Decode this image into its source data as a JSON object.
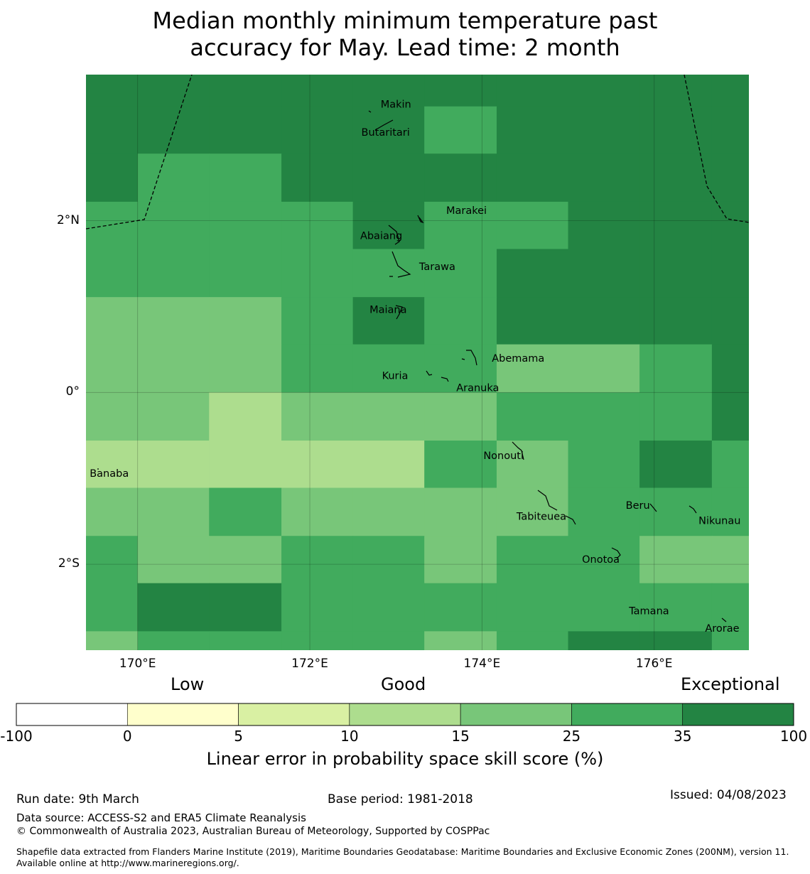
{
  "title_line1": "Median monthly minimum temperature past",
  "title_line2": "accuracy for May. Lead time: 2 month",
  "map": {
    "lon_range": [
      169.4,
      177.1
    ],
    "lat_range": [
      -3.0,
      3.7
    ],
    "lon_ticks": [
      {
        "value": 170,
        "label": "170°E"
      },
      {
        "value": 172,
        "label": "172°E"
      },
      {
        "value": 174,
        "label": "174°E"
      },
      {
        "value": 176,
        "label": "176°E"
      }
    ],
    "lat_ticks": [
      {
        "value": 2,
        "label": "2°N"
      },
      {
        "value": 0,
        "label": "0°"
      },
      {
        "value": -2,
        "label": "2°S"
      }
    ],
    "cell_lons": [
      169.4,
      170.0,
      170.83,
      171.67,
      172.5,
      173.33,
      174.17,
      175.0,
      175.83,
      176.67,
      177.1
    ],
    "cell_lats": [
      3.7,
      3.33,
      2.78,
      2.22,
      1.67,
      1.11,
      0.56,
      0.0,
      -0.56,
      -1.11,
      -1.67,
      -2.22,
      -2.78,
      -3.0
    ],
    "grid": [
      [
        6,
        6,
        6,
        6,
        6,
        6,
        6,
        6,
        6,
        6
      ],
      [
        6,
        6,
        6,
        6,
        6,
        5,
        6,
        6,
        6,
        6
      ],
      [
        6,
        5,
        5,
        6,
        6,
        6,
        6,
        6,
        6,
        6
      ],
      [
        5,
        5,
        5,
        5,
        6,
        5,
        5,
        6,
        6,
        6
      ],
      [
        5,
        5,
        5,
        5,
        5,
        5,
        6,
        6,
        6,
        6
      ],
      [
        4,
        4,
        4,
        5,
        6,
        5,
        6,
        6,
        6,
        6
      ],
      [
        4,
        4,
        4,
        5,
        5,
        5,
        4,
        4,
        5,
        6
      ],
      [
        4,
        4,
        3,
        4,
        4,
        4,
        5,
        5,
        5,
        6
      ],
      [
        3,
        3,
        3,
        3,
        3,
        5,
        4,
        5,
        6,
        5
      ],
      [
        4,
        4,
        5,
        4,
        4,
        4,
        4,
        5,
        5,
        5
      ],
      [
        5,
        4,
        4,
        5,
        5,
        4,
        5,
        5,
        4,
        4
      ],
      [
        5,
        6,
        6,
        5,
        5,
        5,
        5,
        5,
        5,
        5
      ],
      [
        4,
        5,
        5,
        5,
        5,
        4,
        5,
        6,
        6,
        5
      ]
    ],
    "islands": [
      {
        "name": "Makin",
        "lon": 173.0,
        "lat": 3.35
      },
      {
        "name": "Butaritari",
        "lon": 172.88,
        "lat": 3.02
      },
      {
        "name": "Marakei",
        "lon": 173.82,
        "lat": 2.11
      },
      {
        "name": "Abaiang",
        "lon": 172.83,
        "lat": 1.82
      },
      {
        "name": "Tarawa",
        "lon": 173.48,
        "lat": 1.46
      },
      {
        "name": "Maiana",
        "lon": 172.91,
        "lat": 0.96
      },
      {
        "name": "Abemama",
        "lon": 174.42,
        "lat": 0.39
      },
      {
        "name": "Kuria",
        "lon": 172.99,
        "lat": 0.19
      },
      {
        "name": "Aranuka",
        "lon": 173.95,
        "lat": 0.05
      },
      {
        "name": "Nonouti",
        "lon": 174.25,
        "lat": -0.74
      },
      {
        "name": "Banaba",
        "lon": 169.67,
        "lat": -0.95
      },
      {
        "name": "Beru",
        "lon": 175.81,
        "lat": -1.32
      },
      {
        "name": "Tabiteuea",
        "lon": 174.69,
        "lat": -1.45
      },
      {
        "name": "Nikunau",
        "lon": 176.76,
        "lat": -1.5
      },
      {
        "name": "Onotoa",
        "lon": 175.38,
        "lat": -1.95
      },
      {
        "name": "Tamana",
        "lon": 175.94,
        "lat": -2.55
      },
      {
        "name": "Arorae",
        "lon": 176.79,
        "lat": -2.75
      }
    ]
  },
  "colorbar": {
    "categories": [
      "Low",
      "Good",
      "Exceptional"
    ],
    "ticks": [
      "-100",
      "0",
      "5",
      "10",
      "15",
      "25",
      "35",
      "100"
    ],
    "colors": [
      "#ffffff",
      "#ffffcc",
      "#d9f0a3",
      "#addd8e",
      "#78c679",
      "#41ab5d",
      "#238443"
    ],
    "label": "Linear error in probability space skill score (%)"
  },
  "footer": {
    "run_date": "Run date: 9th March",
    "base_period": "Base period: 1981-2018",
    "issued": "Issued: 04/08/2023",
    "data_source": "Data source: ACCESS-S2 and ERA5 Climate Reanalysis",
    "copyright": "© Commonwealth of Australia 2023, Australian Bureau of Meteorology, Supported by COSPPac",
    "shapefile": "Shapefile data extracted from Flanders Marine Institute (2019), Maritime Boundaries Geodatabase: Maritime Boundaries and Exclusive Economic Zones (200NM), version 11. Available online at http://www.marineregions.org/."
  }
}
